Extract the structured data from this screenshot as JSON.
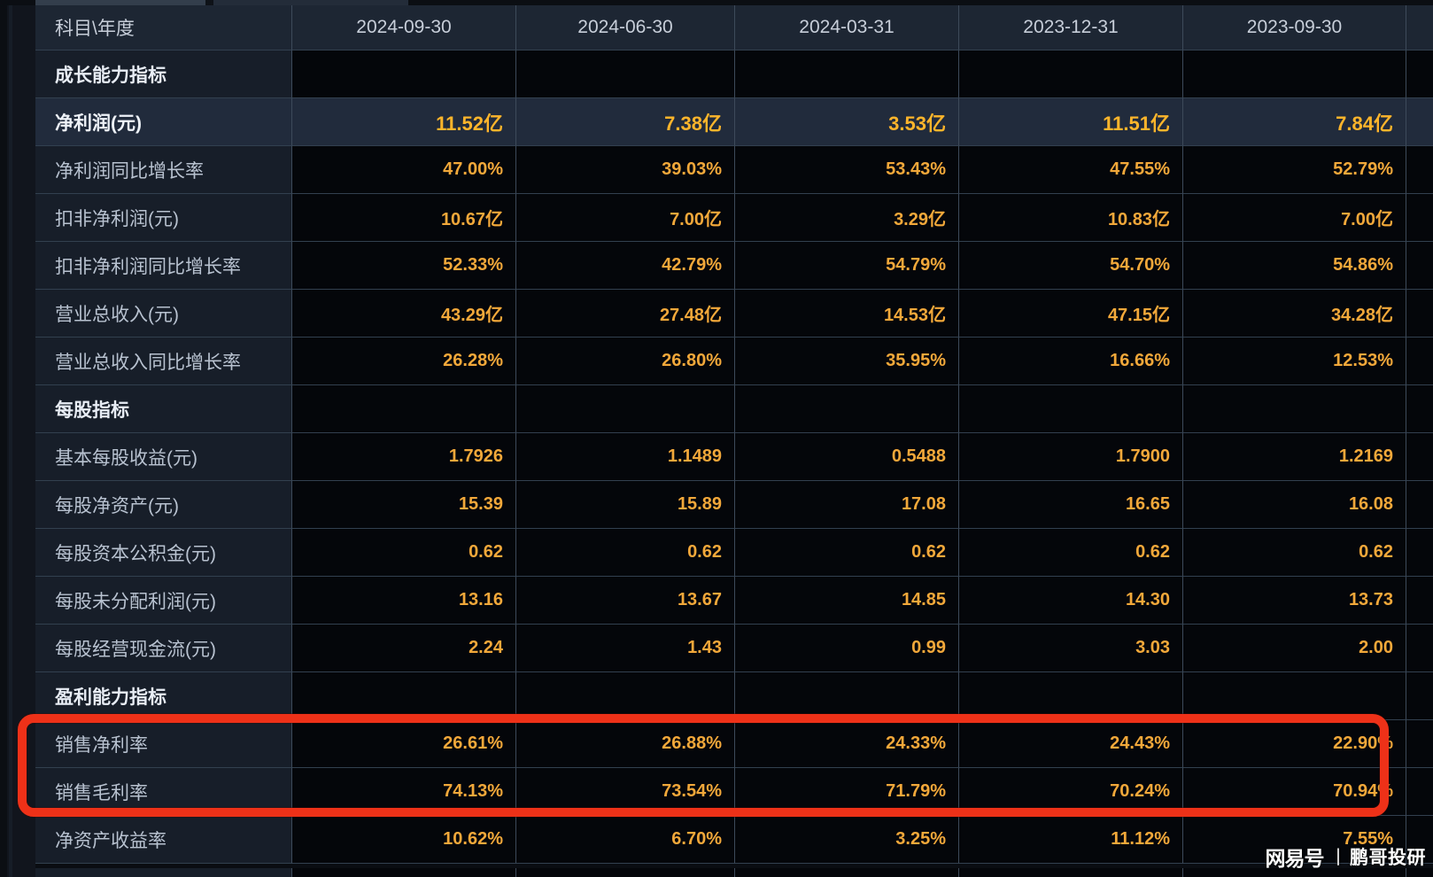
{
  "table": {
    "header": {
      "label_col": "科目\\年度",
      "date_cols": [
        "2024-09-30",
        "2024-06-30",
        "2024-03-31",
        "2023-12-31",
        "2023-09-30"
      ]
    },
    "rows": [
      {
        "label": "成长能力指标",
        "type": "section",
        "values": [
          "",
          "",
          "",
          "",
          ""
        ]
      },
      {
        "label": "净利润(元)",
        "type": "highlight",
        "values": [
          "11.52亿",
          "7.38亿",
          "3.53亿",
          "11.51亿",
          "7.84亿"
        ]
      },
      {
        "label": "净利润同比增长率",
        "type": "data",
        "values": [
          "47.00%",
          "39.03%",
          "53.43%",
          "47.55%",
          "52.79%"
        ]
      },
      {
        "label": "扣非净利润(元)",
        "type": "data",
        "values": [
          "10.67亿",
          "7.00亿",
          "3.29亿",
          "10.83亿",
          "7.00亿"
        ]
      },
      {
        "label": "扣非净利润同比增长率",
        "type": "data",
        "values": [
          "52.33%",
          "42.79%",
          "54.79%",
          "54.70%",
          "54.86%"
        ]
      },
      {
        "label": "营业总收入(元)",
        "type": "data",
        "values": [
          "43.29亿",
          "27.48亿",
          "14.53亿",
          "47.15亿",
          "34.28亿"
        ]
      },
      {
        "label": "营业总收入同比增长率",
        "type": "data",
        "values": [
          "26.28%",
          "26.80%",
          "35.95%",
          "16.66%",
          "12.53%"
        ]
      },
      {
        "label": "每股指标",
        "type": "section",
        "values": [
          "",
          "",
          "",
          "",
          ""
        ]
      },
      {
        "label": "基本每股收益(元)",
        "type": "data",
        "values": [
          "1.7926",
          "1.1489",
          "0.5488",
          "1.7900",
          "1.2169"
        ]
      },
      {
        "label": "每股净资产(元)",
        "type": "data",
        "values": [
          "15.39",
          "15.89",
          "17.08",
          "16.65",
          "16.08"
        ]
      },
      {
        "label": "每股资本公积金(元)",
        "type": "data",
        "values": [
          "0.62",
          "0.62",
          "0.62",
          "0.62",
          "0.62"
        ]
      },
      {
        "label": "每股未分配利润(元)",
        "type": "data",
        "values": [
          "13.16",
          "13.67",
          "14.85",
          "14.30",
          "13.73"
        ]
      },
      {
        "label": "每股经营现金流(元)",
        "type": "data",
        "values": [
          "2.24",
          "1.43",
          "0.99",
          "3.03",
          "2.00"
        ]
      },
      {
        "label": "盈利能力指标",
        "type": "section",
        "values": [
          "",
          "",
          "",
          "",
          ""
        ]
      },
      {
        "label": "销售净利率",
        "type": "data",
        "values": [
          "26.61%",
          "26.88%",
          "24.33%",
          "24.43%",
          "22.90%"
        ]
      },
      {
        "label": "销售毛利率",
        "type": "data",
        "values": [
          "74.13%",
          "73.54%",
          "71.79%",
          "70.24%",
          "70.94%"
        ]
      },
      {
        "label": "净资产收益率",
        "type": "data",
        "values": [
          "10.62%",
          "6.70%",
          "3.25%",
          "11.12%",
          "7.55%"
        ]
      }
    ]
  },
  "annotation": {
    "type": "red-highlight-box",
    "highlighted_rows": [
      "销售净利率",
      "销售毛利率"
    ],
    "color": "#ee3118"
  },
  "watermark": {
    "brand": "网易号",
    "separator": "丨",
    "author": "鹏哥投研"
  },
  "colors": {
    "value_orange": "#f2a83a",
    "highlight_orange": "#ffb52b",
    "header_bg": "#1d2633",
    "label_cell_bg": "#171e29",
    "data_cell_bg": "#04060a",
    "highlight_row_bg": "#212b3c",
    "grid_line": "#3d4a5a",
    "page_bg": "#11151d"
  }
}
